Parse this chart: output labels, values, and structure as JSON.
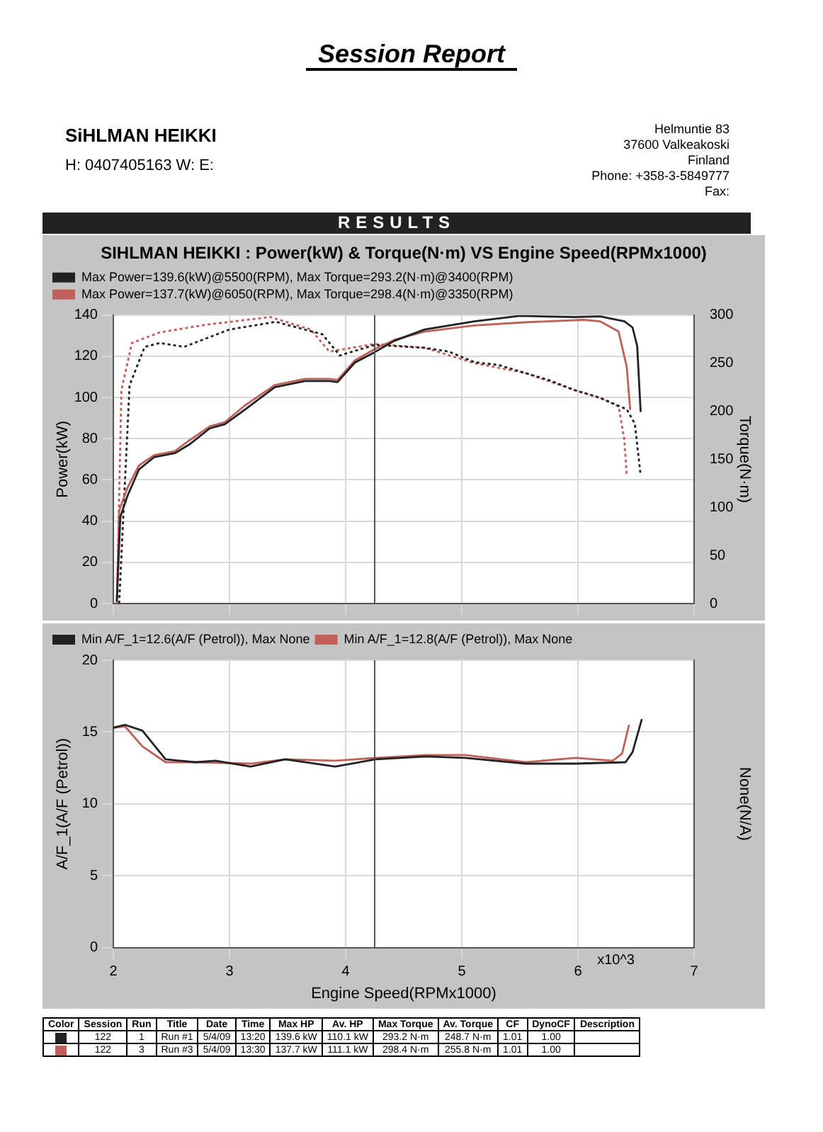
{
  "chart_data": [
    {
      "type": "line",
      "title": "SIHLMAN HEIKKI : Power(kW) & Torque(N·m) VS Engine Speed(RPMx1000)",
      "ylabel": "Power(kW)",
      "y2label": "Torque(N·m)",
      "annotations": [
        "Session Report",
        "SiHLMAN HEIKKI",
        "H:  0407405163    W:        E:",
        "Helmuntie 83",
        "37600 Valkeakoski",
        "Finland",
        "Phone: +358-3-5849777",
        "Fax:",
        "RESULTS"
      ],
      "xlim": [
        2,
        7
      ],
      "xticks": [
        2,
        3,
        4,
        5,
        6,
        7
      ],
      "ylim": [
        0,
        140
      ],
      "yticks": [
        0,
        20,
        40,
        60,
        80,
        100,
        120,
        140
      ],
      "y2lim": [
        0,
        300
      ],
      "y2ticks": [
        0,
        50,
        100,
        150,
        200,
        250,
        300
      ],
      "tick_labels": "y",
      "grid": true,
      "legend": "top",
      "marker": "none",
      "ref_lines": [
        {
          "axis": "x",
          "value": 4.25,
          "color": "#555555"
        }
      ],
      "series": [
        {
          "name": "Max Power=139.6(kW)@5500(RPM), Max Torque=293.2(N·m)@3400(RPM)",
          "color": "#222222",
          "line_style": "solid",
          "x": [
            2.03,
            2.06,
            2.12,
            2.22,
            2.35,
            2.53,
            2.65,
            2.83,
            2.96,
            3.13,
            3.39,
            3.65,
            3.86,
            3.93,
            4.08,
            4.25,
            4.42,
            4.68,
            5.11,
            5.5,
            5.97,
            6.19,
            6.4,
            6.47,
            6.51,
            6.54
          ],
          "values": [
            1,
            42,
            52,
            65,
            71,
            73,
            77,
            85,
            87,
            94,
            105,
            108,
            108,
            107.5,
            117,
            122,
            127.5,
            133,
            137,
            139.6,
            139,
            139.4,
            137,
            134,
            125,
            93
          ]
        },
        {
          "name": "Max Power=137.7(kW)@6050(RPM), Max Torque=298.4(N·m)@3350(RPM)",
          "color": "#c0605a",
          "line_style": "solid",
          "x": [
            2.03,
            2.05,
            2.12,
            2.22,
            2.35,
            2.53,
            2.65,
            2.83,
            2.96,
            3.13,
            3.39,
            3.65,
            3.86,
            3.93,
            4.08,
            4.25,
            4.42,
            4.68,
            5.11,
            5.54,
            6.05,
            6.19,
            6.35,
            6.42,
            6.45
          ],
          "values": [
            0,
            45,
            56,
            67,
            72,
            74,
            79,
            86,
            88,
            96,
            106,
            109,
            109,
            108.5,
            118,
            123.5,
            128,
            132,
            135,
            136.5,
            137.7,
            137,
            132,
            115,
            94
          ]
        },
        {
          "color": "#222222",
          "axis": "y2",
          "line_style": "dotted",
          "x": [
            2.05,
            2.14,
            2.27,
            2.4,
            2.61,
            3.0,
            3.4,
            3.8,
            3.95,
            4.25,
            4.68,
            4.89,
            5.11,
            5.32,
            5.54,
            5.76,
            5.97,
            6.19,
            6.42,
            6.49,
            6.54
          ],
          "values": [
            0,
            227,
            267,
            271,
            267,
            285,
            293,
            280,
            258,
            269,
            266,
            262,
            251,
            248,
            240,
            232,
            222,
            214,
            202,
            187,
            133
          ]
        },
        {
          "color": "#c0605a",
          "axis": "y2",
          "line_style": "dotted",
          "x": [
            2.03,
            2.07,
            2.16,
            2.4,
            2.8,
            3.35,
            3.7,
            3.86,
            4.25,
            4.68,
            5.11,
            5.54,
            5.97,
            6.19,
            6.35,
            6.4,
            6.42
          ],
          "values": [
            0,
            222,
            271,
            282,
            290,
            298,
            285,
            262,
            270,
            266,
            250,
            240,
            222,
            214,
            205,
            170,
            133
          ]
        }
      ]
    },
    {
      "type": "line",
      "xlabel": "Engine Speed(RPMx1000)",
      "ylabel": "A/F_1(A/F (Petrol))",
      "y2label": "None(N/A)",
      "annotations": [
        "x10^3",
        "Color",
        "Session",
        "Run",
        "Title",
        "Date",
        "Time",
        "Max HP",
        "Av. HP",
        "Max Torque",
        "Av. Torque",
        "CF",
        "DynoCF",
        "Description",
        "122",
        "1",
        "Run #1",
        "5/4/09",
        "13:20",
        "139.6 kW",
        "110.1 kW",
        "293.2 N·m",
        "248.7 N·m",
        "1.01",
        "1.00",
        "122",
        "3",
        "Run #3",
        "5/4/09",
        "13:30",
        "137.7 kW",
        "111.1 kW",
        "298.4 N·m",
        "255.8 N·m",
        "1.01",
        "1.00"
      ],
      "xlim": [
        2,
        7
      ],
      "xticks": [
        2,
        3,
        4,
        5,
        6,
        7
      ],
      "ylim": [
        0,
        20
      ],
      "yticks": [
        0,
        5,
        10,
        15,
        20
      ],
      "grid": true,
      "legend": "top",
      "marker": "none",
      "ref_lines": [
        {
          "axis": "x",
          "value": 4.25,
          "color": "#555555"
        }
      ],
      "series": [
        {
          "name": "Min A/F_1=12.6(A/F (Petrol)), Max None",
          "color": "#222222",
          "x": [
            2,
            2.1,
            2.25,
            2.45,
            2.71,
            2.88,
            3.18,
            3.48,
            3.91,
            4.26,
            4.69,
            5.03,
            5.55,
            5.98,
            6.41,
            6.47,
            6.55
          ],
          "values": [
            15.3,
            15.5,
            15.1,
            13.1,
            12.9,
            13.0,
            12.6,
            13.1,
            12.6,
            13.1,
            13.3,
            13.2,
            12.8,
            12.8,
            12.9,
            13.6,
            15.9
          ]
        },
        {
          "name": "Min A/F_1=12.8(A/F (Petrol)), Max None",
          "color": "#c0605a",
          "x": [
            2,
            2.1,
            2.25,
            2.45,
            2.71,
            3.18,
            3.48,
            3.91,
            4.26,
            4.69,
            5.03,
            5.55,
            5.98,
            6.3,
            6.38,
            6.44
          ],
          "values": [
            15.3,
            15.4,
            14.0,
            12.9,
            12.9,
            12.8,
            13.1,
            13.0,
            13.2,
            13.4,
            13.4,
            12.9,
            13.2,
            13.0,
            13.5,
            15.5
          ]
        }
      ]
    }
  ]
}
